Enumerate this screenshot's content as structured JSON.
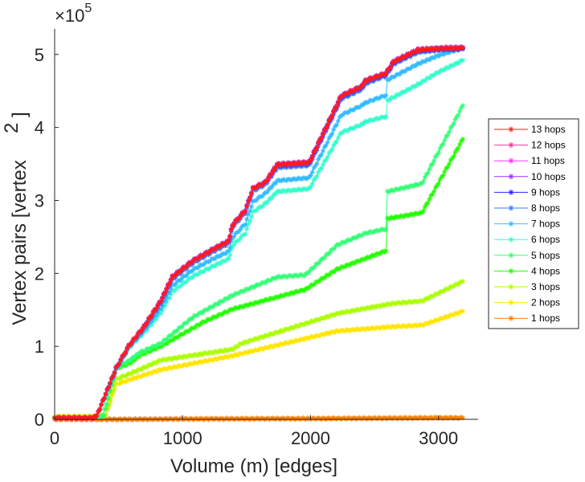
{
  "chart_data": {
    "type": "line",
    "title": "",
    "xlabel": "Volume (m) [edges]",
    "ylabel": "Vertex pairs [vertex",
    "ylabel_superscript": "2",
    "ylabel_close": "]",
    "y_exponent_label": "×10",
    "y_exponent": "5",
    "xlim": [
      0,
      3310
    ],
    "ylim": [
      0,
      5.35
    ],
    "x_ticks": [
      0,
      1000,
      2000,
      3000
    ],
    "x_tick_labels": [
      "0",
      "1000",
      "2000",
      "3000"
    ],
    "y_ticks": [
      0,
      1,
      2,
      3,
      4,
      5
    ],
    "y_tick_labels": [
      "0",
      "1",
      "2",
      "3",
      "4",
      "5"
    ],
    "y_units_multiplier": 100000,
    "grid": false,
    "legend_position": "right",
    "marker": "asterisk",
    "series": [
      {
        "name": "13 hops",
        "color": "#ff1a1a",
        "x": [
          0,
          300,
          330,
          480,
          580,
          700,
          830,
          920,
          1080,
          1240,
          1360,
          1390,
          1490,
          1550,
          1650,
          1740,
          1990,
          2240,
          2400,
          2430,
          2590,
          2650,
          2840,
          2990,
          3190
        ],
        "values": [
          0.02,
          0.02,
          0.05,
          0.7,
          1.01,
          1.27,
          1.62,
          1.95,
          2.17,
          2.33,
          2.44,
          2.66,
          2.86,
          3.16,
          3.25,
          3.49,
          3.52,
          4.43,
          4.56,
          4.64,
          4.74,
          4.9,
          5.06,
          5.08,
          5.09
        ]
      },
      {
        "name": "12 hops",
        "color": "#ff3399",
        "x": [
          0,
          300,
          330,
          480,
          580,
          700,
          830,
          920,
          1080,
          1240,
          1360,
          1390,
          1490,
          1550,
          1650,
          1740,
          1990,
          2240,
          2400,
          2430,
          2590,
          2650,
          2840,
          2990,
          3190
        ],
        "values": [
          0.02,
          0.02,
          0.05,
          0.7,
          1.01,
          1.27,
          1.62,
          1.95,
          2.17,
          2.33,
          2.44,
          2.66,
          2.86,
          3.16,
          3.25,
          3.49,
          3.52,
          4.43,
          4.56,
          4.64,
          4.74,
          4.9,
          5.06,
          5.08,
          5.09
        ]
      },
      {
        "name": "11 hops",
        "color": "#ff33ff",
        "x": [
          0,
          300,
          330,
          480,
          580,
          700,
          830,
          920,
          1080,
          1240,
          1360,
          1390,
          1490,
          1550,
          1650,
          1740,
          1990,
          2240,
          2400,
          2430,
          2590,
          2650,
          2840,
          2990,
          3190
        ],
        "values": [
          0.02,
          0.02,
          0.05,
          0.7,
          1.01,
          1.27,
          1.62,
          1.95,
          2.17,
          2.33,
          2.44,
          2.66,
          2.86,
          3.16,
          3.25,
          3.49,
          3.52,
          4.43,
          4.56,
          4.64,
          4.74,
          4.9,
          5.06,
          5.08,
          5.09
        ]
      },
      {
        "name": "10 hops",
        "color": "#9933ff",
        "x": [
          0,
          300,
          330,
          480,
          580,
          700,
          830,
          920,
          1080,
          1240,
          1360,
          1390,
          1490,
          1550,
          1650,
          1740,
          1990,
          2240,
          2400,
          2430,
          2590,
          2650,
          2840,
          2990,
          3190
        ],
        "values": [
          0.02,
          0.02,
          0.05,
          0.7,
          1.01,
          1.28,
          1.63,
          1.96,
          2.18,
          2.34,
          2.45,
          2.67,
          2.87,
          3.17,
          3.26,
          3.5,
          3.53,
          4.44,
          4.57,
          4.65,
          4.75,
          4.91,
          5.07,
          5.09,
          5.1
        ]
      },
      {
        "name": "9 hops",
        "color": "#2626ff",
        "x": [
          0,
          300,
          330,
          480,
          580,
          700,
          830,
          920,
          1080,
          1240,
          1360,
          1390,
          1490,
          1550,
          1650,
          1740,
          1990,
          2240,
          2400,
          2430,
          2590,
          2650,
          2840,
          2990,
          3190
        ],
        "values": [
          0.02,
          0.02,
          0.05,
          0.7,
          1.01,
          1.27,
          1.62,
          1.95,
          2.17,
          2.33,
          2.44,
          2.66,
          2.86,
          3.16,
          3.25,
          3.48,
          3.51,
          4.42,
          4.55,
          4.63,
          4.73,
          4.89,
          5.05,
          5.07,
          5.08
        ]
      },
      {
        "name": "8 hops",
        "color": "#3377ff",
        "x": [
          0,
          300,
          330,
          480,
          580,
          700,
          830,
          920,
          1080,
          1240,
          1360,
          1390,
          1490,
          1550,
          1650,
          1740,
          1990,
          2240,
          2400,
          2430,
          2590,
          2650,
          2840,
          2990,
          3190
        ],
        "values": [
          0.02,
          0.02,
          0.05,
          0.69,
          1.0,
          1.25,
          1.59,
          1.92,
          2.14,
          2.3,
          2.41,
          2.63,
          2.83,
          3.13,
          3.22,
          3.45,
          3.48,
          4.39,
          4.52,
          4.6,
          4.71,
          4.87,
          5.03,
          5.06,
          5.07
        ]
      },
      {
        "name": "7 hops",
        "color": "#33bbff",
        "x": [
          0,
          300,
          330,
          480,
          580,
          700,
          830,
          920,
          1080,
          1240,
          1360,
          1390,
          1490,
          1550,
          1650,
          1740,
          1990,
          2240,
          2400,
          2430,
          2590,
          2600,
          2840,
          2990,
          3190
        ],
        "values": [
          0.02,
          0.02,
          0.05,
          0.68,
          0.99,
          1.22,
          1.52,
          1.83,
          2.05,
          2.2,
          2.3,
          2.49,
          2.68,
          2.98,
          3.1,
          3.27,
          3.31,
          4.17,
          4.3,
          4.34,
          4.44,
          4.65,
          4.87,
          4.98,
          5.09
        ]
      },
      {
        "name": "6 hops",
        "color": "#33ffcc",
        "x": [
          0,
          300,
          330,
          480,
          580,
          700,
          830,
          920,
          1080,
          1240,
          1360,
          1390,
          1490,
          1550,
          1650,
          1740,
          1990,
          2240,
          2400,
          2430,
          2590,
          2600,
          2840,
          2990,
          3190
        ],
        "values": [
          0.02,
          0.02,
          0.05,
          0.67,
          0.98,
          1.19,
          1.46,
          1.75,
          1.96,
          2.1,
          2.2,
          2.38,
          2.55,
          2.84,
          2.96,
          3.12,
          3.16,
          3.93,
          4.04,
          4.08,
          4.15,
          4.37,
          4.59,
          4.75,
          4.92
        ]
      },
      {
        "name": "5 hops",
        "color": "#33ff77",
        "x": [
          0,
          300,
          380,
          480,
          580,
          670,
          830,
          1080,
          1390,
          1740,
          1960,
          2210,
          2430,
          2590,
          2600,
          2870,
          3190
        ],
        "values": [
          0.02,
          0.02,
          0.05,
          0.72,
          0.8,
          0.92,
          1.04,
          1.4,
          1.7,
          1.95,
          1.98,
          2.39,
          2.55,
          2.61,
          3.12,
          3.23,
          4.3
        ]
      },
      {
        "name": "4 hops",
        "color": "#22ff00",
        "x": [
          0,
          300,
          380,
          480,
          580,
          670,
          830,
          1170,
          1390,
          1960,
          2210,
          2590,
          2600,
          2870,
          3190
        ],
        "values": [
          0.02,
          0.02,
          0.05,
          0.7,
          0.76,
          0.88,
          1.0,
          1.34,
          1.51,
          1.78,
          2.06,
          2.31,
          2.75,
          2.83,
          3.84
        ]
      },
      {
        "name": "3 hops",
        "color": "#aaff00",
        "x": [
          0,
          300,
          400,
          480,
          580,
          830,
          1390,
          1460,
          2210,
          2650,
          2870,
          3190
        ],
        "values": [
          0.03,
          0.03,
          0.06,
          0.55,
          0.62,
          0.81,
          0.96,
          1.04,
          1.45,
          1.59,
          1.62,
          1.89
        ]
      },
      {
        "name": "2 hops",
        "color": "#ffe600",
        "x": [
          0,
          300,
          400,
          480,
          580,
          830,
          1390,
          1460,
          2210,
          2650,
          2870,
          3190
        ],
        "values": [
          0.04,
          0.04,
          0.06,
          0.48,
          0.54,
          0.68,
          0.87,
          0.9,
          1.21,
          1.27,
          1.29,
          1.48
        ]
      },
      {
        "name": "1 hops",
        "color": "#ff7f00",
        "x": [
          0,
          500,
          1000,
          1500,
          2000,
          2500,
          3000,
          3190
        ],
        "values": [
          0.0,
          0.0,
          0.005,
          0.008,
          0.01,
          0.015,
          0.02,
          0.02
        ]
      }
    ]
  }
}
